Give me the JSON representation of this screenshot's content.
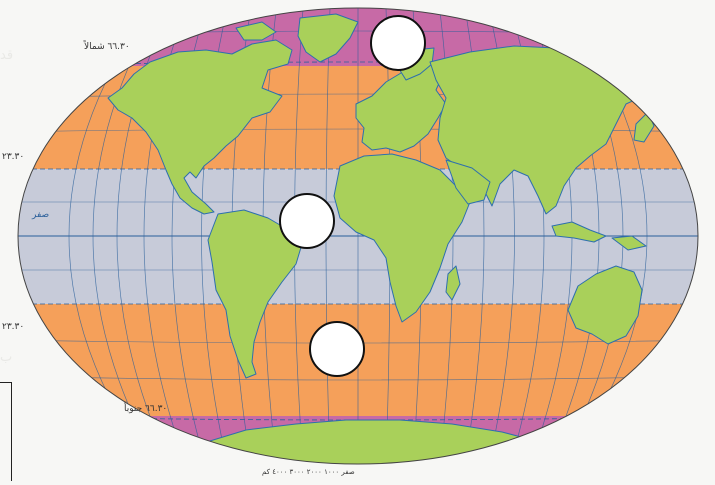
{
  "map": {
    "latitude_labels": {
      "arctic_circle": "٦٦.٣٠ شمالاً",
      "tropic_north": "٢٣.٣٠",
      "equator": "صفر",
      "tropic_south": "٢٣.٣٠",
      "antarctic_circle": "٦٦.٣٠ جنوباً"
    },
    "scale_label": "صفر ١٠٠٠ ٢٠٠٠ ٣٠٠٠ ٤٠٠٠ كم",
    "colors": {
      "ocean_frigid": "#c76aa6",
      "ocean_temperate": "#f5a05a",
      "ocean_tropical": "#c7cbd9",
      "land": "#a9d05a",
      "grid": "#2a5f9a",
      "coast": "#2d6fae"
    },
    "answer_circles": [
      {
        "id": "north",
        "label": ""
      },
      {
        "id": "middle",
        "label": ""
      },
      {
        "id": "south",
        "label": ""
      }
    ]
  }
}
